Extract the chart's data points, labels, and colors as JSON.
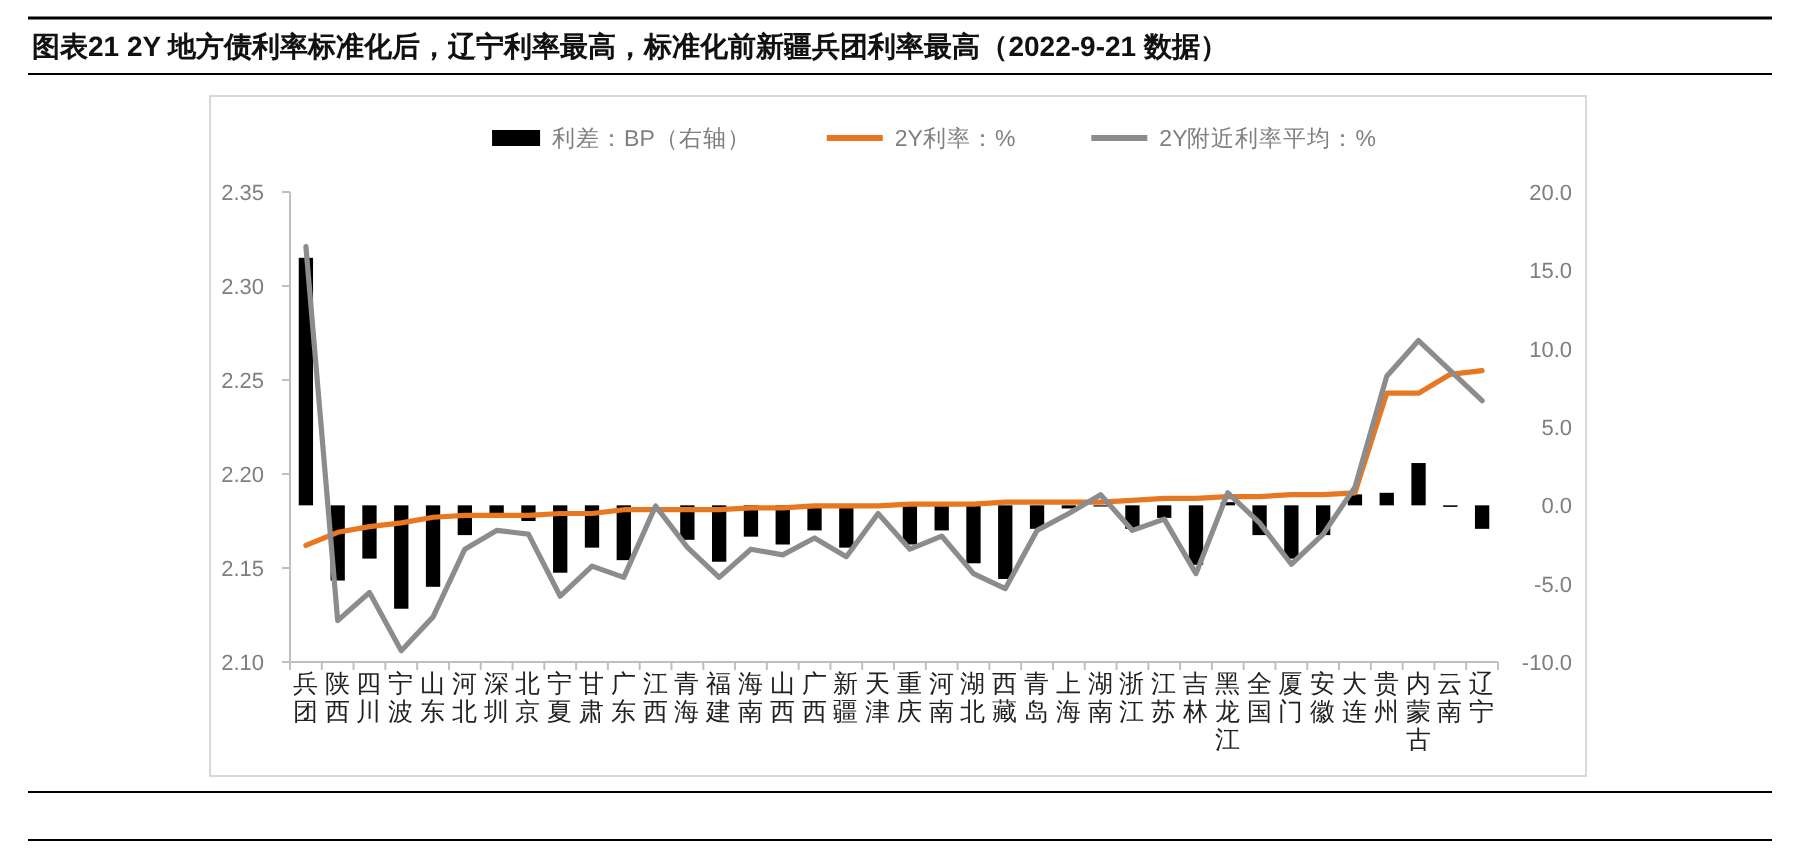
{
  "chart_data": {
    "type": "bar",
    "title": "图表21  2Y 地方债利率标准化后，辽宁利率最高，标准化前新疆兵团利率最高（2022-9-21 数据）",
    "categories": [
      "兵团",
      "陕西",
      "四川",
      "宁波",
      "山东",
      "河北",
      "深圳",
      "北京",
      "宁夏",
      "甘肃",
      "广东",
      "江西",
      "青海",
      "福建",
      "海南",
      "山西",
      "广西",
      "新疆",
      "天津",
      "重庆",
      "河南",
      "湖北",
      "西藏",
      "青岛",
      "上海",
      "湖南",
      "浙江",
      "江苏",
      "吉林",
      "黑龙江",
      "全国",
      "厦门",
      "安徽",
      "大连",
      "贵州",
      "内蒙古",
      "云南",
      "辽宁"
    ],
    "series": [
      {
        "name": "利差：BP（右轴）",
        "axis": "y2",
        "color": "#000000",
        "values": [
          15.8,
          -4.8,
          -3.4,
          -6.6,
          -5.2,
          -1.9,
          -0.6,
          -1.0,
          -4.3,
          -2.7,
          -3.5,
          null,
          -2.2,
          -3.6,
          -2.0,
          -2.5,
          -1.6,
          -2.7,
          null,
          -2.5,
          -1.6,
          -3.7,
          -4.7,
          -1.5,
          -0.2,
          0,
          -1.5,
          -0.8,
          -3.8,
          0.2,
          -1.9,
          -3.4,
          -1.9,
          0.7,
          0.8,
          2.7,
          -0.1,
          -1.5
        ]
      },
      {
        "name": "2Y利率：%",
        "type": "line",
        "axis": "y",
        "color": "#e87722",
        "values": [
          2.162,
          2.169,
          2.172,
          2.174,
          2.177,
          2.178,
          2.178,
          2.178,
          2.179,
          2.179,
          2.181,
          2.181,
          2.181,
          2.181,
          2.182,
          2.182,
          2.183,
          2.183,
          2.183,
          2.184,
          2.184,
          2.184,
          2.185,
          2.185,
          2.185,
          2.185,
          2.186,
          2.187,
          2.187,
          2.188,
          2.188,
          2.189,
          2.189,
          2.19,
          2.243,
          2.243,
          2.253,
          2.255
        ]
      },
      {
        "name": "2Y附近利率平均：%",
        "type": "line",
        "axis": "y",
        "color": "#8c8c8c",
        "values": [
          2.321,
          2.122,
          2.137,
          2.106,
          2.124,
          2.16,
          2.17,
          2.168,
          2.135,
          2.151,
          2.145,
          2.183,
          2.161,
          2.145,
          2.16,
          2.157,
          2.166,
          2.156,
          2.179,
          2.16,
          2.167,
          2.147,
          2.139,
          2.17,
          2.179,
          2.189,
          2.17,
          2.176,
          2.147,
          2.19,
          2.174,
          2.152,
          2.168,
          2.193,
          2.252,
          2.271,
          2.255,
          2.239
        ]
      }
    ],
    "ylim": [
      2.1,
      2.35
    ],
    "yticks": [
      {
        "value": 2.1,
        "label": "2.10"
      },
      {
        "value": 2.15,
        "label": "2.15"
      },
      {
        "value": 2.2,
        "label": "2.20"
      },
      {
        "value": 2.25,
        "label": "2.25"
      },
      {
        "value": 2.3,
        "label": "2.30"
      },
      {
        "value": 2.35,
        "label": "2.35"
      }
    ],
    "y2lim": [
      -10,
      20
    ],
    "y2ticks": [
      {
        "value": -10,
        "label": "-10.0"
      },
      {
        "value": -5,
        "label": "-5.0"
      },
      {
        "value": 0,
        "label": "0.0"
      },
      {
        "value": 5,
        "label": "5.0"
      },
      {
        "value": 10,
        "label": "10.0"
      },
      {
        "value": 15,
        "label": "15.0"
      },
      {
        "value": 20,
        "label": "20.0"
      }
    ],
    "legend": "top",
    "grid": false
  }
}
